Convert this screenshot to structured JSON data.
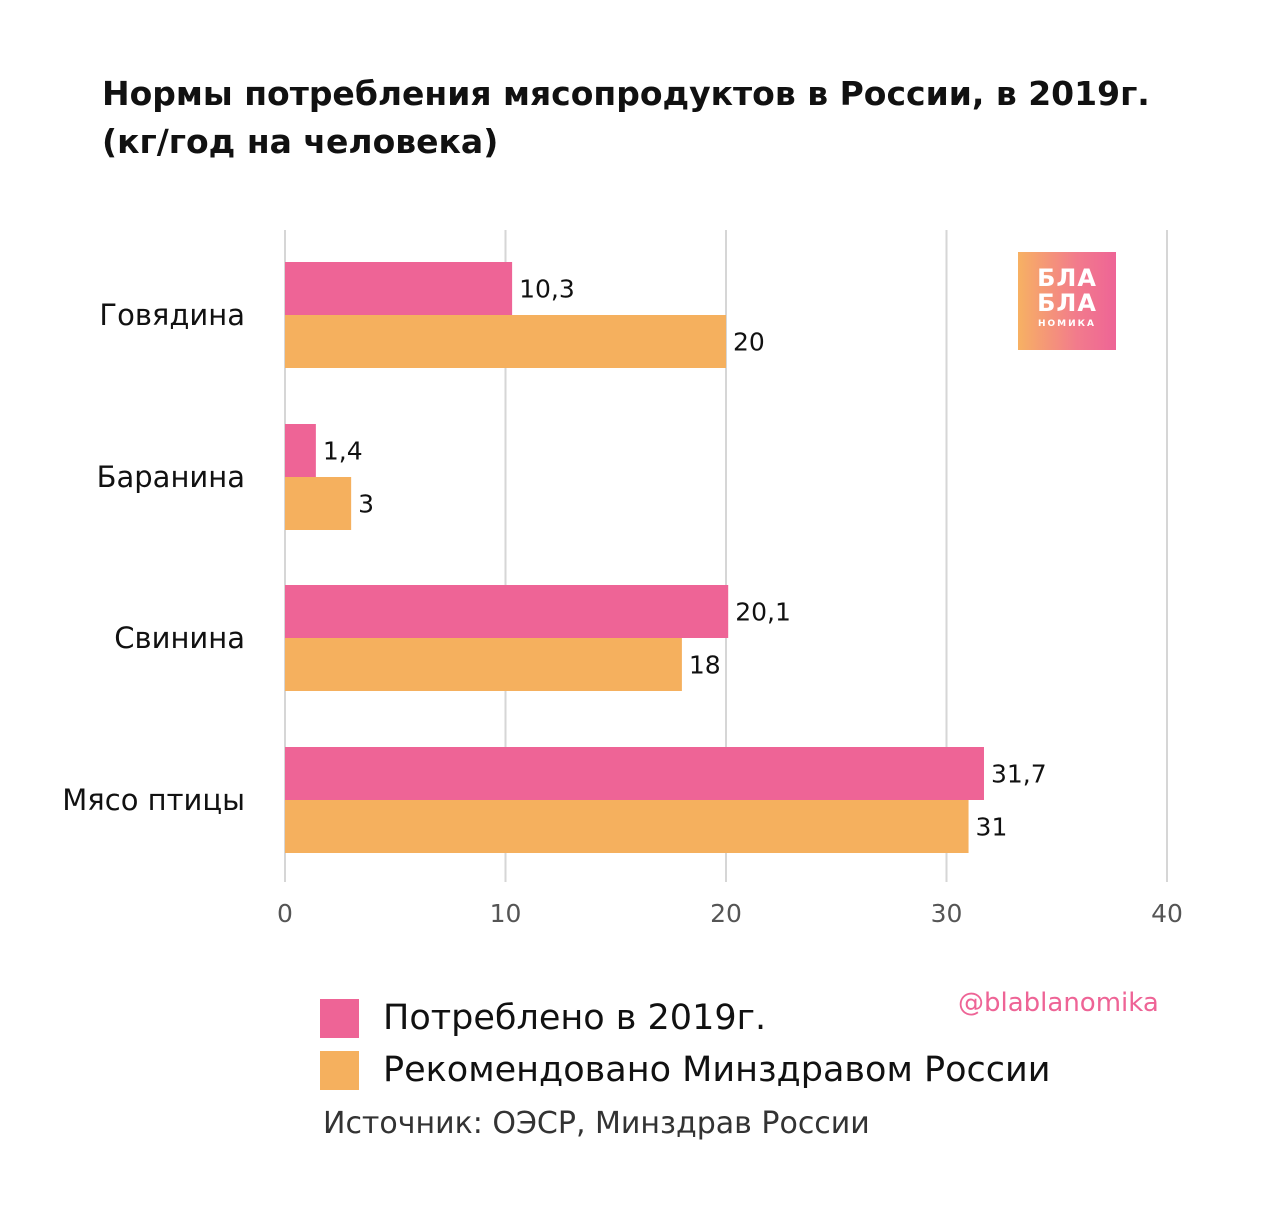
{
  "chart_data": {
    "type": "bar",
    "orientation": "horizontal",
    "title_line1": "Нормы потребления мясопродуктов в России, в 2019г.",
    "title_line2": "(кг/год на человека)",
    "categories": [
      "Говядина",
      "Баранина",
      "Свинина",
      "Мясо птицы"
    ],
    "series": [
      {
        "name": "Потреблено в 2019г.",
        "color": "#ee6496",
        "values": [
          10.3,
          1.4,
          20.1,
          31.7
        ],
        "labels": [
          "10,3",
          "1,4",
          "20,1",
          "31,7"
        ]
      },
      {
        "name": "Рекомендовано Минздравом России",
        "color": "#f5b05e",
        "values": [
          20,
          3,
          18,
          31
        ],
        "labels": [
          "20",
          "3",
          "18",
          "31"
        ]
      }
    ],
    "xlim": [
      0,
      40
    ],
    "xticks": [
      0,
      10,
      20,
      30,
      40
    ],
    "xtick_labels": [
      "0",
      "10",
      "20",
      "30",
      "40"
    ],
    "grid": true,
    "legend_position": "bottom"
  },
  "logo": {
    "line1": "БЛА",
    "line2": "БЛА",
    "line3": "НОМИКА"
  },
  "handle": "@blablanomika",
  "source": "Источник: ОЭСР, Минздрав России"
}
